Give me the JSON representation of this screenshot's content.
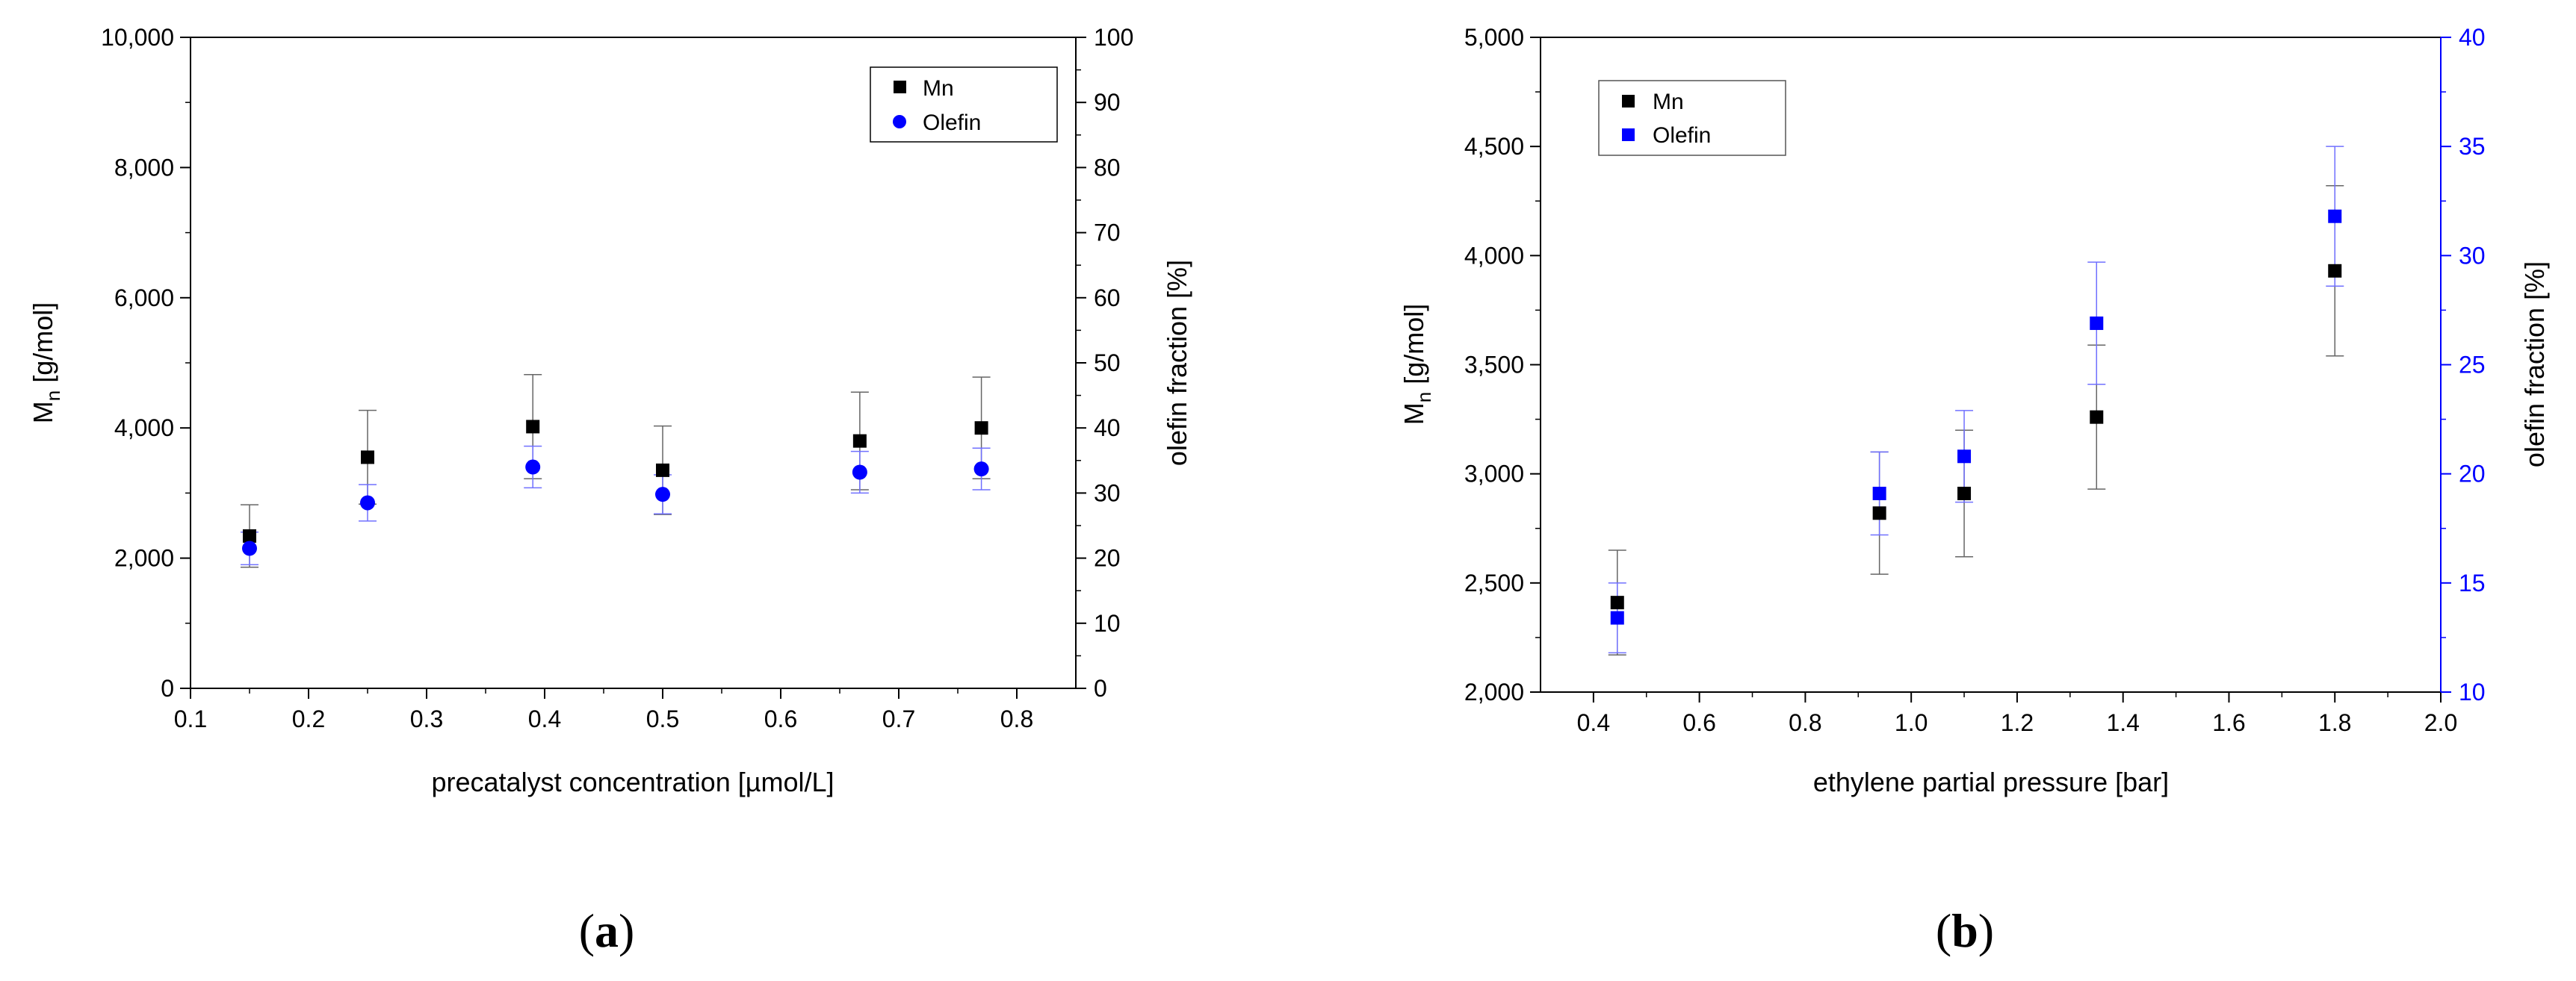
{
  "chart_data": [
    {
      "type": "scatter",
      "panel_label": "a",
      "xlabel": "precatalyst concentration [µmol/L]",
      "ylabel_main": "M",
      "ylabel_sub": "n",
      "ylabel_rest": " [g/mol]",
      "y2label": "olefin fraction [%]",
      "xlim": [
        0.1,
        0.85
      ],
      "ylim": [
        0,
        10000
      ],
      "y2lim": [
        0,
        100
      ],
      "xticks": [
        0.1,
        0.2,
        0.3,
        0.4,
        0.5,
        0.6,
        0.7,
        0.8
      ],
      "xtick_labels": [
        "0.1",
        "0.2",
        "0.3",
        "0.4",
        "0.5",
        "0.6",
        "0.7",
        "0.8"
      ],
      "yticks": [
        0,
        2000,
        4000,
        6000,
        8000,
        10000
      ],
      "ytick_labels": [
        "0",
        "2,000",
        "4,000",
        "6,000",
        "8,000",
        "10,000"
      ],
      "y2ticks": [
        0,
        10,
        20,
        30,
        40,
        50,
        60,
        70,
        80,
        90,
        100
      ],
      "y2tick_labels": [
        "0",
        "10",
        "20",
        "30",
        "40",
        "50",
        "60",
        "70",
        "80",
        "90",
        "100"
      ],
      "legend_position": "top-right",
      "series": [
        {
          "name": "Mn",
          "axis": "left",
          "marker": "square",
          "color": "#000000",
          "error_color": "#666666",
          "x": [
            0.15,
            0.25,
            0.39,
            0.5,
            0.667,
            0.77
          ],
          "y": [
            2340,
            3550,
            4020,
            3350,
            3800,
            4000
          ],
          "yerr": [
            480,
            720,
            800,
            680,
            750,
            780
          ]
        },
        {
          "name": "Olefin",
          "axis": "right",
          "marker": "circle",
          "color": "#0000ff",
          "error_color": "#7070ff",
          "x": [
            0.15,
            0.25,
            0.39,
            0.5,
            0.667,
            0.77
          ],
          "y": [
            21.5,
            28.5,
            34,
            29.8,
            33.2,
            33.7
          ],
          "yerr": [
            2.5,
            2.8,
            3.2,
            3,
            3.2,
            3.2
          ]
        }
      ]
    },
    {
      "type": "scatter",
      "panel_label": "b",
      "xlabel": "ethylene partial pressure [bar]",
      "ylabel_main": "M",
      "ylabel_sub": "n",
      "ylabel_rest": " [g/mol]",
      "y2label": "olefin fraction [%]",
      "xlim": [
        0.3,
        2.0
      ],
      "ylim": [
        2000,
        5000
      ],
      "y2lim": [
        10,
        40
      ],
      "xticks": [
        0.4,
        0.6,
        0.8,
        1.0,
        1.2,
        1.4,
        1.6,
        1.8,
        2.0
      ],
      "xtick_labels": [
        "0.4",
        "0.6",
        "0.8",
        "1.0",
        "1.2",
        "1.4",
        "1.6",
        "1.8",
        "2.0"
      ],
      "yticks": [
        2000,
        2500,
        3000,
        3500,
        4000,
        4500,
        5000
      ],
      "ytick_labels": [
        "2,000",
        "2,500",
        "3,000",
        "3,500",
        "4,000",
        "4,500",
        "5,000"
      ],
      "y2ticks": [
        10,
        15,
        20,
        25,
        30,
        35,
        40
      ],
      "y2tick_labels": [
        "10",
        "15",
        "20",
        "25",
        "30",
        "35",
        "40"
      ],
      "right_axis_color": "#0000ff",
      "legend_position": "top-left",
      "series": [
        {
          "name": "Mn",
          "axis": "left",
          "marker": "square",
          "color": "#000000",
          "error_color": "#666666",
          "x": [
            0.445,
            0.94,
            1.1,
            1.35,
            1.8
          ],
          "y": [
            2410,
            2820,
            2910,
            3260,
            3930
          ],
          "yerr": [
            240,
            280,
            290,
            330,
            390
          ]
        },
        {
          "name": "Olefin",
          "axis": "right",
          "marker": "square",
          "color": "#0000ff",
          "error_color": "#7070ff",
          "x": [
            0.445,
            0.94,
            1.1,
            1.35,
            1.8
          ],
          "y": [
            13.4,
            19.1,
            20.8,
            26.9,
            31.8
          ],
          "yerr": [
            1.6,
            1.9,
            2.1,
            2.8,
            3.2
          ]
        }
      ]
    }
  ]
}
